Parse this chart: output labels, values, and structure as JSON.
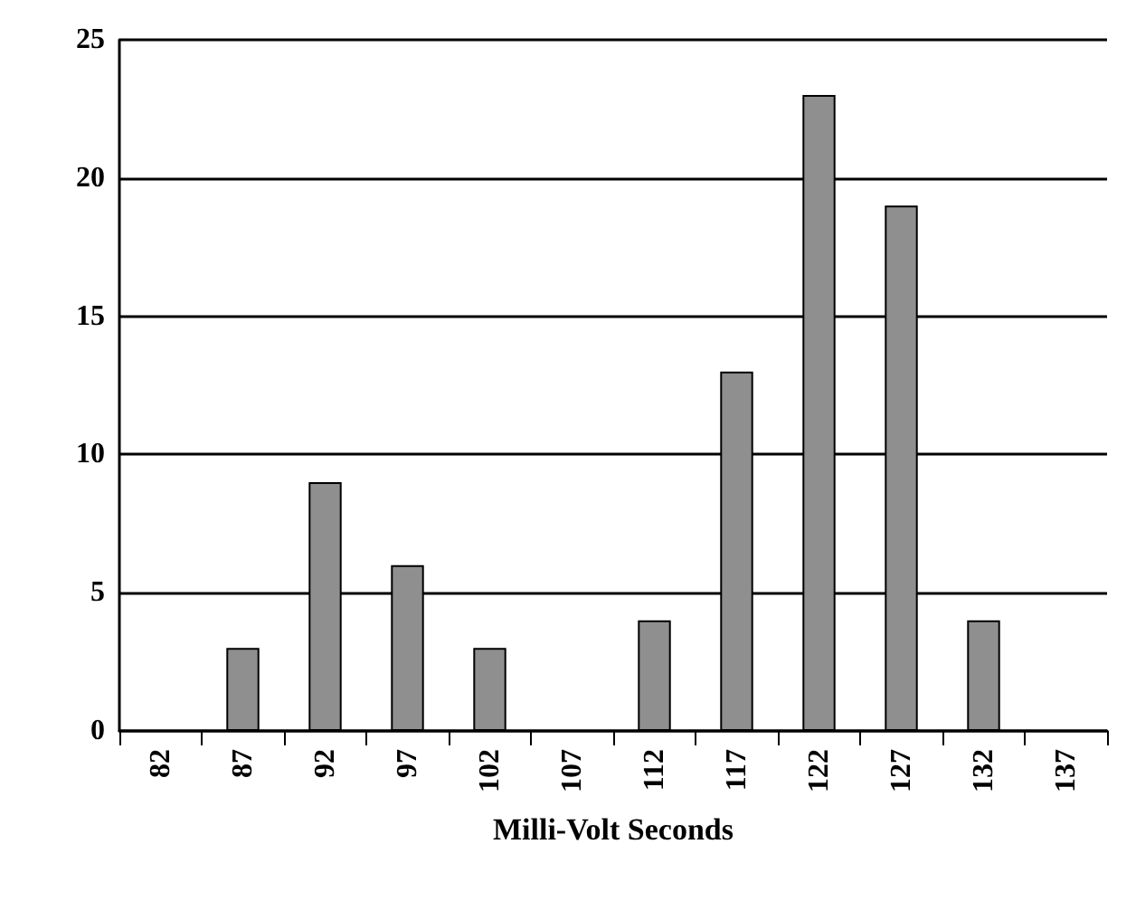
{
  "chart_data": {
    "type": "bar",
    "xlabel": "Milli-Volt Seconds",
    "categories": [
      "82",
      "87",
      "92",
      "97",
      "102",
      "107",
      "112",
      "117",
      "122",
      "127",
      "132",
      "137"
    ],
    "values": [
      0,
      3,
      9,
      6,
      3,
      0,
      4,
      13,
      23,
      19,
      4,
      0
    ],
    "color": "#8f8f8f",
    "ylim": [
      0,
      25
    ],
    "yticks": [
      0,
      5,
      10,
      15,
      20,
      25
    ],
    "grid": "y"
  }
}
